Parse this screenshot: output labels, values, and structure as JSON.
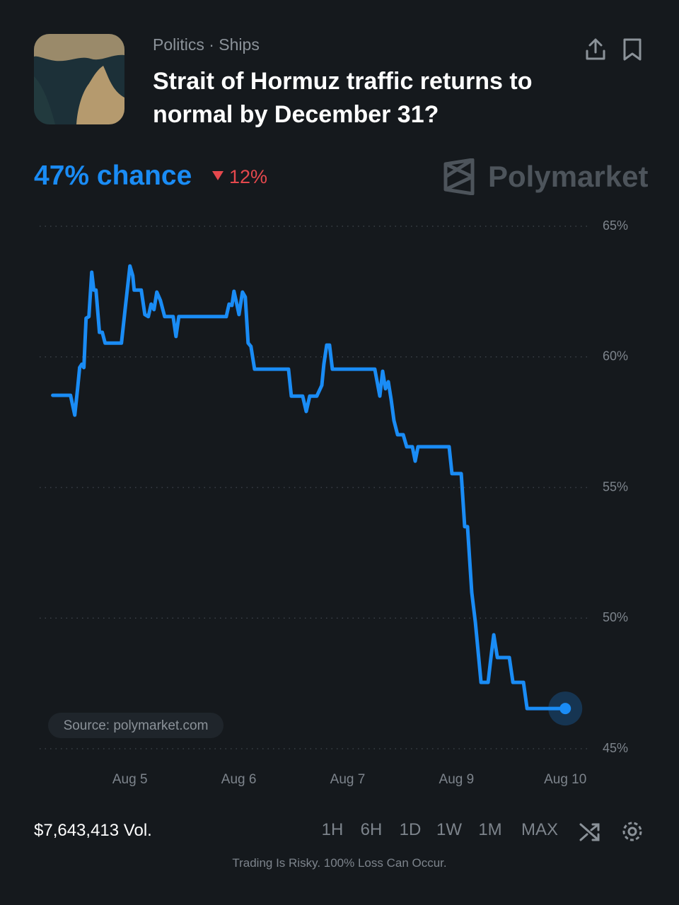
{
  "header": {
    "category": "Politics · Ships",
    "title": "Strait of Hormuz traffic returns to normal by December 31?",
    "chance": "47% chance",
    "change": "12%",
    "brand": "Polymarket"
  },
  "chart_data": {
    "type": "line",
    "color": "#1a8cf5",
    "grid": true,
    "x": [
      0.291,
      0.454,
      0.493,
      0.519,
      0.538,
      0.558,
      0.577,
      0.597,
      0.623,
      0.649,
      0.668,
      0.688,
      0.72,
      0.746,
      0.772,
      0.922,
      0.961,
      1.0,
      1.026,
      1.039,
      1.104,
      1.137,
      1.169,
      1.195,
      1.221,
      1.247,
      1.28,
      1.319,
      1.397,
      1.423,
      1.449,
      1.885,
      1.911,
      1.937,
      1.956,
      1.982,
      2.002,
      2.034,
      2.06,
      2.086,
      2.112,
      2.145,
      2.457,
      2.483,
      2.587,
      2.62,
      2.652,
      2.717,
      2.763,
      2.782,
      2.808,
      2.834,
      2.86,
      3.25,
      3.296,
      3.322,
      3.348,
      3.374,
      3.4,
      3.426,
      3.459,
      3.511,
      3.543,
      3.595,
      3.621,
      3.647,
      3.933,
      3.959,
      4.044,
      4.076,
      4.102,
      4.141,
      4.174,
      4.226,
      4.291,
      4.317,
      4.343,
      4.376,
      4.486,
      4.519,
      4.616,
      4.649,
      5.0
    ],
    "values": [
      58.53,
      58.53,
      57.77,
      58.78,
      59.59,
      59.72,
      59.59,
      61.48,
      61.54,
      63.24,
      62.56,
      62.56,
      60.94,
      60.94,
      60.53,
      60.53,
      62.02,
      63.48,
      63.11,
      62.56,
      62.56,
      61.62,
      61.54,
      62.02,
      61.81,
      62.48,
      62.16,
      61.54,
      61.54,
      60.78,
      61.54,
      61.54,
      62.02,
      61.97,
      62.51,
      62.02,
      61.62,
      62.48,
      62.29,
      60.53,
      60.4,
      59.53,
      59.53,
      58.5,
      58.5,
      57.91,
      58.5,
      58.5,
      58.91,
      59.72,
      60.45,
      60.45,
      59.53,
      59.53,
      58.5,
      59.45,
      58.78,
      59.05,
      58.37,
      57.56,
      57.02,
      57.02,
      56.56,
      56.56,
      56.01,
      56.56,
      56.56,
      55.53,
      55.53,
      53.5,
      53.5,
      50.98,
      49.84,
      47.54,
      47.54,
      48.49,
      49.36,
      48.49,
      48.49,
      47.54,
      47.54,
      46.54,
      46.54
    ],
    "xlim": [
      0.17,
      5.2
    ],
    "xticks": [
      {
        "value": 1,
        "label": "Aug 5"
      },
      {
        "value": 2,
        "label": "Aug 6"
      },
      {
        "value": 3,
        "label": "Aug 7"
      },
      {
        "value": 4,
        "label": "Aug 9"
      },
      {
        "value": 5,
        "label": "Aug 10"
      }
    ],
    "ylim": [
      45,
      65
    ],
    "yticks": [
      {
        "value": 45,
        "label": "45%"
      },
      {
        "value": 50,
        "label": "50%"
      },
      {
        "value": 55,
        "label": "55%"
      },
      {
        "value": 60,
        "label": "60%"
      },
      {
        "value": 65,
        "label": "65%"
      }
    ],
    "source": "Source: polymarket.com"
  },
  "footer": {
    "volume": "$7,643,413 Vol.",
    "ranges": [
      "1H",
      "6H",
      "1D",
      "1W",
      "1M",
      "MAX"
    ],
    "disclaimer": "Trading Is Risky. 100% Loss Can Occur."
  }
}
